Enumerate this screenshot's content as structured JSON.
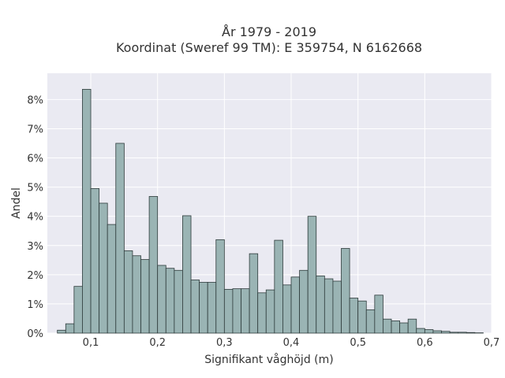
{
  "chart_data": {
    "type": "bar",
    "title": "År 1979 - 2019",
    "subtitle": "Koordinat (Sweref 99 TM): E 359754, N 6162668",
    "xlabel": "Signifikant våghöjd (m)",
    "ylabel": "Andel",
    "xlim": [
      0.035,
      0.7
    ],
    "ylim": [
      0,
      8.9
    ],
    "grid": true,
    "bar_color": "#9ab4b4",
    "bar_edge_color": "#2e3b3b",
    "background_color": "#eaeaf2",
    "grid_color": "#ffffff",
    "x_ticks": [
      "0,1",
      "0,2",
      "0,3",
      "0,4",
      "0,5",
      "0,6",
      "0,7"
    ],
    "x_tick_values": [
      0.1,
      0.2,
      0.3,
      0.4,
      0.5,
      0.6,
      0.7
    ],
    "y_ticks": [
      "0%",
      "1%",
      "2%",
      "3%",
      "4%",
      "5%",
      "6%",
      "7%",
      "8%"
    ],
    "y_tick_values": [
      0,
      1,
      2,
      3,
      4,
      5,
      6,
      7,
      8
    ],
    "bin_width": 0.0125,
    "bin_start": 0.05,
    "values": [
      0.1,
      0.32,
      1.6,
      8.35,
      4.95,
      4.45,
      3.72,
      6.5,
      2.82,
      2.65,
      2.52,
      4.68,
      2.32,
      2.22,
      2.15,
      4.02,
      1.82,
      1.74,
      1.74,
      3.2,
      1.5,
      1.52,
      1.52,
      2.72,
      1.38,
      1.48,
      3.18,
      1.65,
      1.92,
      2.15,
      4.0,
      1.96,
      1.86,
      1.78,
      2.9,
      1.2,
      1.1,
      0.8,
      1.3,
      0.48,
      0.42,
      0.35,
      0.48,
      0.16,
      0.12,
      0.08,
      0.06,
      0.03,
      0.03,
      0.02,
      0.01
    ]
  }
}
